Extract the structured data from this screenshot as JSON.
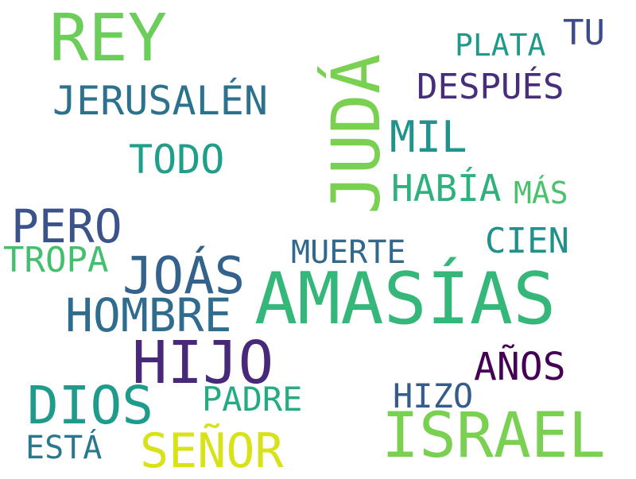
{
  "word_cloud": {
    "words": [
      {
        "text": "REY",
        "color": "#6ccd5a"
      },
      {
        "text": "JUDÁ",
        "color": "#7ad151"
      },
      {
        "text": "TU",
        "color": "#3e4a89"
      },
      {
        "text": "PLATA",
        "color": "#1f9a8a"
      },
      {
        "text": "DESPUÉS",
        "color": "#472d7b"
      },
      {
        "text": "JERUSALÉN",
        "color": "#2c728e"
      },
      {
        "text": "MIL",
        "color": "#20938c"
      },
      {
        "text": "TODO",
        "color": "#1f9e89"
      },
      {
        "text": "HABÍA",
        "color": "#2db27d"
      },
      {
        "text": "MÁS",
        "color": "#4ac16d"
      },
      {
        "text": "PERO",
        "color": "#3b528b"
      },
      {
        "text": "CIEN",
        "color": "#21918c"
      },
      {
        "text": "TROPA",
        "color": "#44bf70"
      },
      {
        "text": "MUERTE",
        "color": "#31688e"
      },
      {
        "text": "JOÁS",
        "color": "#33638d"
      },
      {
        "text": "AMASÍAS",
        "color": "#35b779"
      },
      {
        "text": "HOMBRE",
        "color": "#2f6c8e"
      },
      {
        "text": "HIJO",
        "color": "#482878"
      },
      {
        "text": "AÑOS",
        "color": "#440154"
      },
      {
        "text": "DIOS",
        "color": "#1e9b8a"
      },
      {
        "text": "PADRE",
        "color": "#25ab82"
      },
      {
        "text": "HIZO",
        "color": "#365c8d"
      },
      {
        "text": "ISRAEL",
        "color": "#7ad151"
      },
      {
        "text": "ESTÁ",
        "color": "#2a788e"
      },
      {
        "text": "SEÑOR",
        "color": "#d8e219"
      }
    ]
  }
}
